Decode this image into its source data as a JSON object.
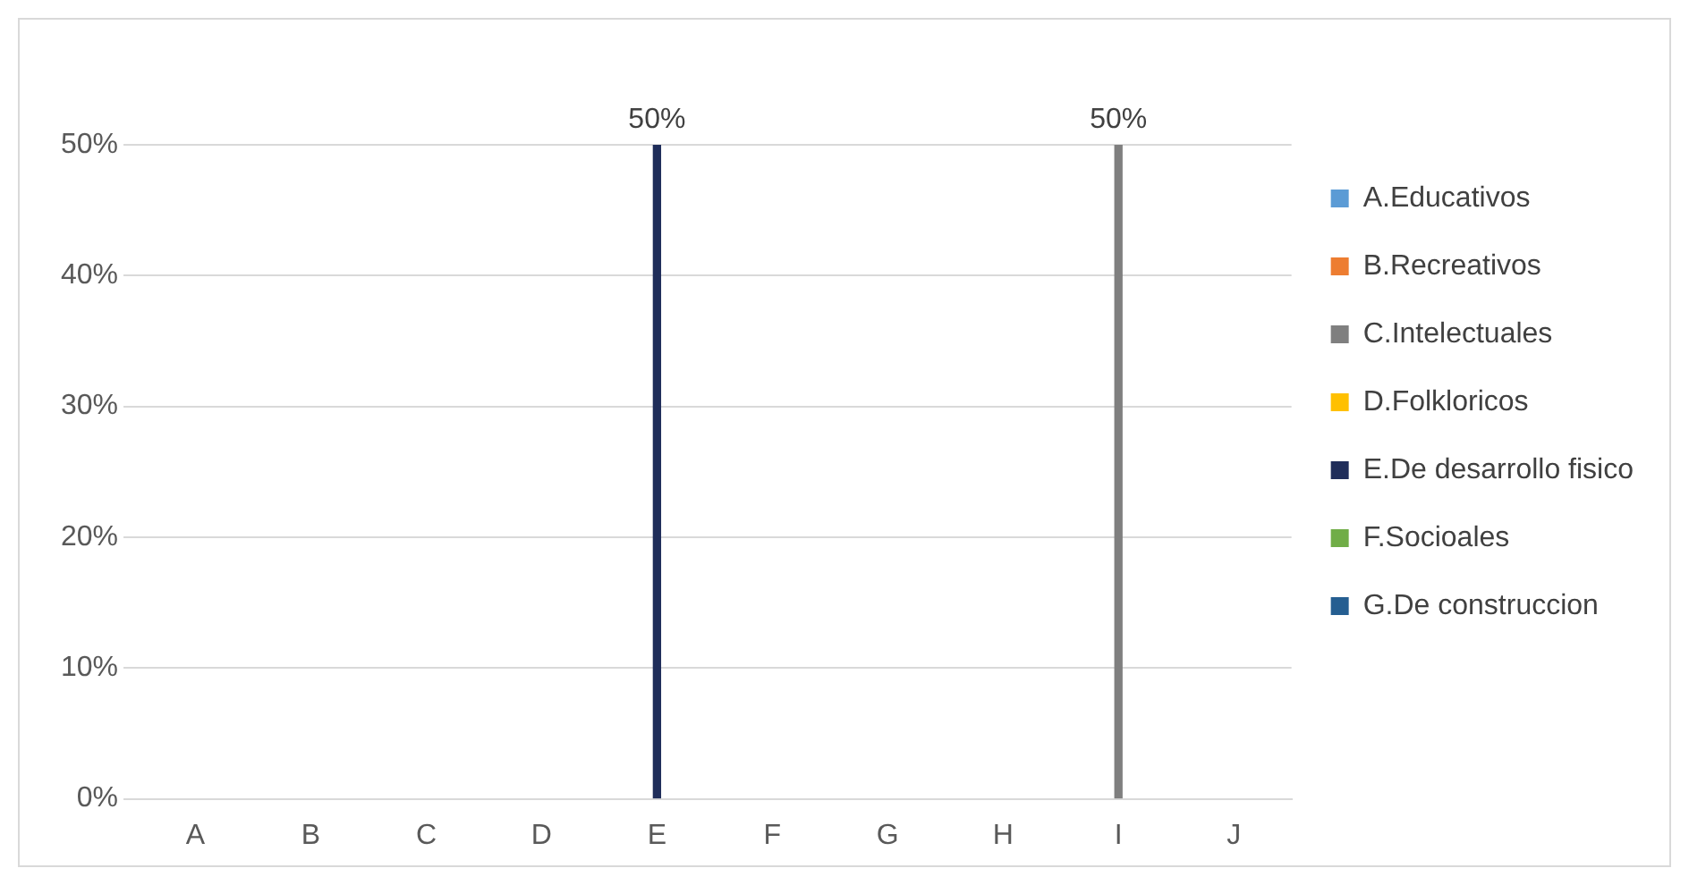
{
  "chart_data": {
    "type": "bar",
    "categories": [
      "A",
      "B",
      "C",
      "D",
      "E",
      "F",
      "G",
      "H",
      "I",
      "J"
    ],
    "series": [
      {
        "name": "A.Educativos",
        "color": "#5b9bd5",
        "values": [
          null,
          null,
          null,
          null,
          null,
          null,
          null,
          null,
          null,
          null
        ]
      },
      {
        "name": "B.Recreativos",
        "color": "#ed7d31",
        "values": [
          null,
          null,
          null,
          null,
          null,
          null,
          null,
          null,
          null,
          null
        ]
      },
      {
        "name": "C.Intelectuales",
        "color": "#7f7f7f",
        "values": [
          null,
          null,
          null,
          null,
          null,
          null,
          null,
          null,
          50,
          null
        ],
        "value_labels": [
          null,
          null,
          null,
          null,
          null,
          null,
          null,
          null,
          "50%",
          null
        ]
      },
      {
        "name": "D.Folkloricos",
        "color": "#ffc000",
        "values": [
          null,
          null,
          null,
          null,
          null,
          null,
          null,
          null,
          null,
          null
        ]
      },
      {
        "name": "E.De desarrollo fisico",
        "color": "#1f2d5a",
        "values": [
          null,
          null,
          null,
          null,
          50,
          null,
          null,
          null,
          null,
          null
        ],
        "value_labels": [
          null,
          null,
          null,
          null,
          "50%",
          null,
          null,
          null,
          null,
          null
        ]
      },
      {
        "name": "F.Socioales",
        "color": "#70ad47",
        "values": [
          null,
          null,
          null,
          null,
          null,
          null,
          null,
          null,
          null,
          null
        ]
      },
      {
        "name": "G.De construccion",
        "color": "#255e91",
        "values": [
          null,
          null,
          null,
          null,
          null,
          null,
          null,
          null,
          null,
          null
        ]
      }
    ],
    "ylim": [
      0,
      50
    ],
    "yticks": [
      {
        "value": 0,
        "label": "0%"
      },
      {
        "value": 10,
        "label": "10%"
      },
      {
        "value": 20,
        "label": "20%"
      },
      {
        "value": 30,
        "label": "30%"
      },
      {
        "value": 40,
        "label": "40%"
      },
      {
        "value": 50,
        "label": "50%"
      }
    ],
    "grid": "y",
    "legend": "right"
  }
}
